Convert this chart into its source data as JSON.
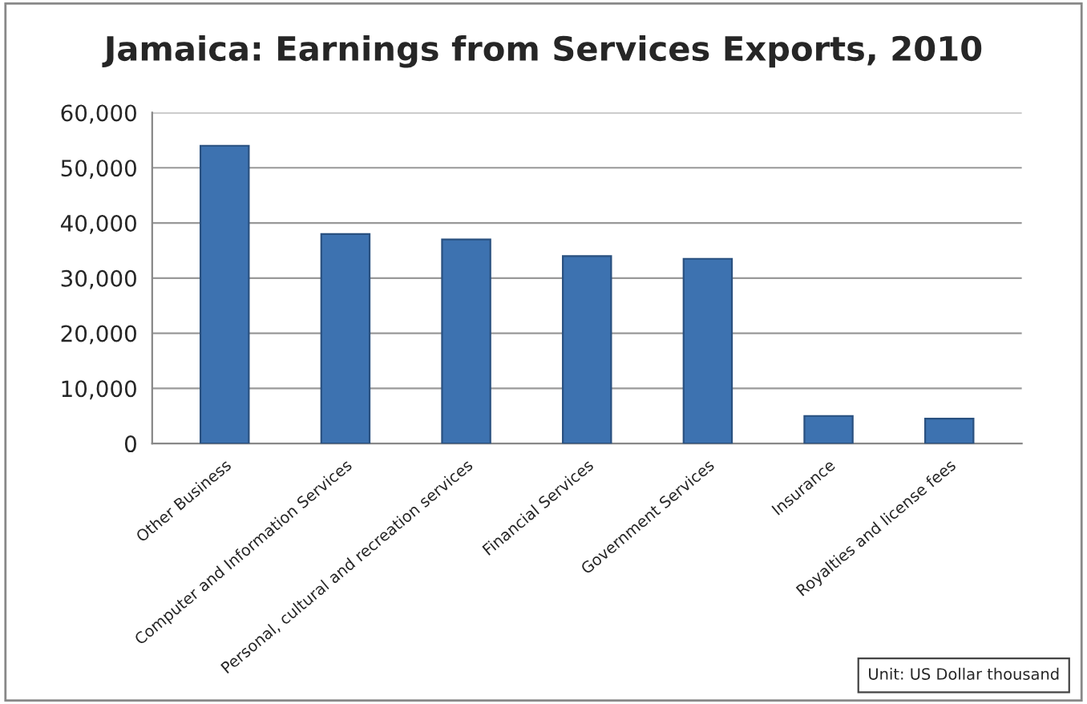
{
  "chart_data": {
    "type": "bar",
    "title": "Jamaica: Earnings from Services Exports, 2010",
    "categories": [
      "Other Business",
      "Computer and Information Services",
      "Personal, cultural and recreation services",
      "Financial Services",
      "Government Services",
      "Insurance",
      "Royalties and license fees"
    ],
    "values": [
      54000,
      38000,
      37000,
      34000,
      33500,
      5000,
      4500
    ],
    "color": "#3d72b0",
    "ylim": [
      0,
      60000
    ],
    "yticks": [
      {
        "value": 0,
        "label": "0"
      },
      {
        "value": 10000,
        "label": "10,000"
      },
      {
        "value": 20000,
        "label": "20,000"
      },
      {
        "value": 30000,
        "label": "30,000"
      },
      {
        "value": 40000,
        "label": "40,000"
      },
      {
        "value": 50000,
        "label": "50,000"
      },
      {
        "value": 60000,
        "label": "60,000"
      }
    ],
    "grid": "y",
    "annotations": [
      "Unit: US Dollar thousand"
    ]
  }
}
